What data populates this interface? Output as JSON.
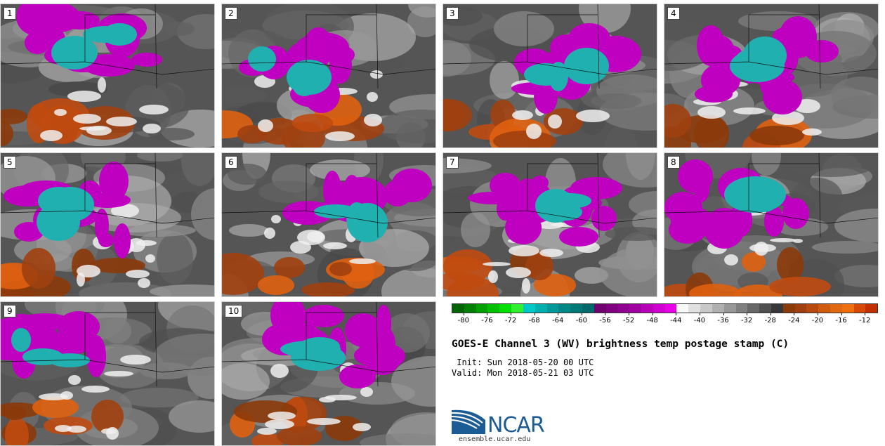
{
  "panels": [
    {
      "label": "1"
    },
    {
      "label": "2"
    },
    {
      "label": "3"
    },
    {
      "label": "4"
    },
    {
      "label": "5"
    },
    {
      "label": "6"
    },
    {
      "label": "7"
    },
    {
      "label": "8"
    },
    {
      "label": "9"
    },
    {
      "label": "10"
    }
  ],
  "colorbar": {
    "colors": [
      "#006400",
      "#008000",
      "#00a000",
      "#00c000",
      "#00e000",
      "#30f030",
      "#00c8c8",
      "#00b0b0",
      "#009898",
      "#008888",
      "#007878",
      "#006868",
      "#700070",
      "#800080",
      "#900090",
      "#a000a0",
      "#b800b8",
      "#d000d0",
      "#e800e8",
      "#f8f8f8",
      "#e0e0e0",
      "#c8c8c8",
      "#b0b0b0",
      "#989898",
      "#808080",
      "#686868",
      "#505050",
      "#383838",
      "#8b3a0a",
      "#a04010",
      "#b84a10",
      "#d05a10",
      "#e06810",
      "#f07010",
      "#d84808",
      "#c03000"
    ],
    "ticks": [
      "-80",
      "-76",
      "-72",
      "-68",
      "-64",
      "-60",
      "-56",
      "-52",
      "-48",
      "-44",
      "-40",
      "-36",
      "-32",
      "-28",
      "-24",
      "-20",
      "-16",
      "-12"
    ],
    "range": [
      -82,
      -10
    ]
  },
  "title": "GOES-E Channel 3 (WV) brightness temp postage stamp (C)",
  "init": " Init: Sun 2018-05-20 00 UTC",
  "valid": "Valid: Mon 2018-05-21 03 UTC",
  "logo": {
    "text": "NCAR",
    "url": "ensemble.ucar.edu",
    "color": "#1c5c95"
  }
}
